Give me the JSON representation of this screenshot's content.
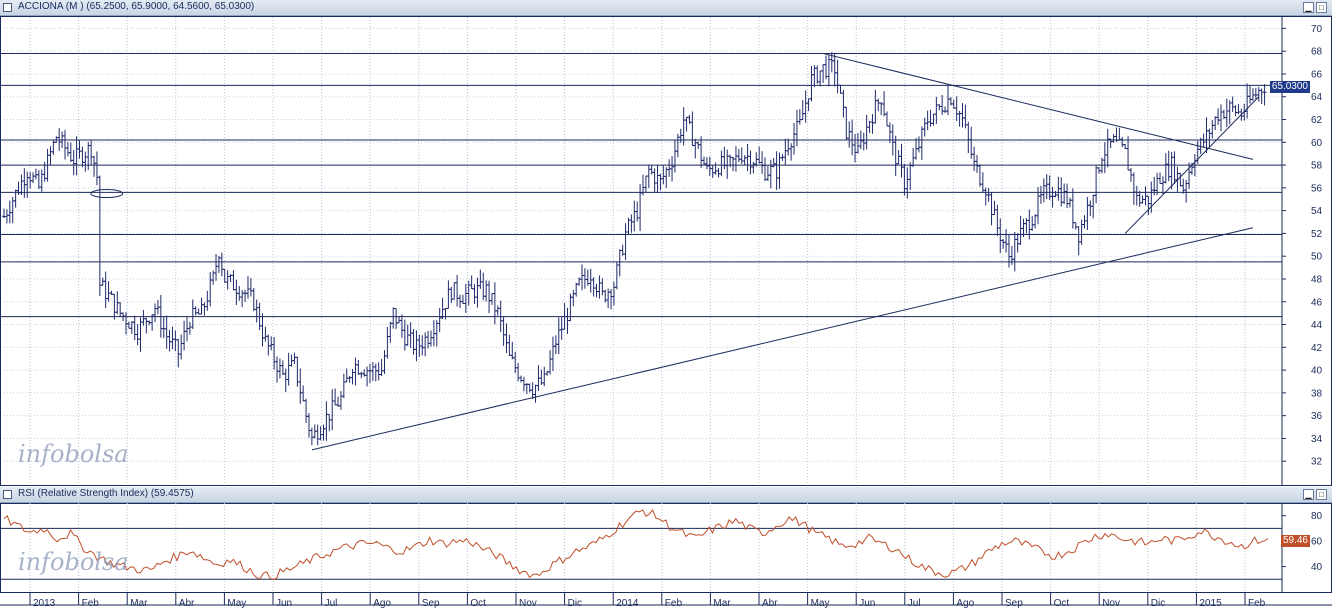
{
  "main_panel": {
    "title": "ACCIONA (M ) (65.2500, 65.9000, 64.5600, 65.0300)",
    "last_price_label": "65.0300",
    "last_price": 65.03,
    "watermark": "infobolsa"
  },
  "rsi_panel": {
    "title": "RSI (Relative Strength Index) (59.4575)",
    "last_value_label": "59.46",
    "last_value": 59.46,
    "watermark": "infobolsa"
  },
  "controls": {
    "minimize_icon": "minimize-icon",
    "maximize_icon": "maximize-icon"
  },
  "colors": {
    "bars": "#1f2a6b",
    "price_label_bg": "#1f3a8a",
    "rsi_line": "#c0502a",
    "rsi_label_bg": "#c0502a",
    "grid": "#1a2a5a",
    "panel_title_bg": "#d4deea"
  },
  "chart_data": [
    {
      "type": "ohlc",
      "ylim": [
        30,
        71
      ],
      "yticks": [
        32,
        34,
        36,
        38,
        40,
        42,
        44,
        46,
        48,
        50,
        52,
        54,
        56,
        58,
        60,
        62,
        64,
        66,
        68,
        70
      ],
      "horizontal_levels": [
        67.8,
        65.0,
        60.2,
        58.0,
        55.6,
        51.9,
        49.5,
        44.7
      ],
      "x_labels": [
        "2013",
        "Feb",
        "Mar",
        "Abr",
        "May",
        "Jun",
        "Jul",
        "Ago",
        "Sep",
        "Oct",
        "Nov",
        "Dic",
        "2014",
        "Feb",
        "Mar",
        "Abr",
        "May",
        "Jun",
        "Jul",
        "Ago",
        "Sep",
        "Oct",
        "Nov",
        "Dic",
        "2015",
        "Feb"
      ],
      "close_path": [
        [
          0,
          53.5
        ],
        [
          4,
          57.5
        ],
        [
          6,
          56
        ],
        [
          9,
          60.5
        ],
        [
          12,
          58.5
        ],
        [
          15,
          59.5
        ],
        [
          16,
          57
        ],
        [
          16.5,
          47.5
        ],
        [
          18,
          46.5
        ],
        [
          20,
          45
        ],
        [
          23,
          43.5
        ],
        [
          26,
          45.5
        ],
        [
          28,
          43
        ],
        [
          30,
          41.5
        ],
        [
          32,
          44.5
        ],
        [
          34,
          45
        ],
        [
          36,
          48
        ],
        [
          37,
          50.5
        ],
        [
          38,
          48
        ],
        [
          41,
          47
        ],
        [
          43,
          46
        ],
        [
          45,
          42.5
        ],
        [
          48,
          39.5
        ],
        [
          50,
          40.5
        ],
        [
          52,
          36
        ],
        [
          53,
          34
        ],
        [
          55,
          35.5
        ],
        [
          58,
          37.5
        ],
        [
          60,
          40.5
        ],
        [
          63,
          40
        ],
        [
          65,
          40
        ],
        [
          67,
          45
        ],
        [
          69,
          43
        ],
        [
          71,
          42
        ],
        [
          73,
          43
        ],
        [
          75,
          45
        ],
        [
          77,
          47
        ],
        [
          79,
          46.5
        ],
        [
          81,
          47
        ],
        [
          83,
          47
        ],
        [
          85,
          45
        ],
        [
          87,
          41
        ],
        [
          89,
          39.5
        ],
        [
          91,
          38.5
        ],
        [
          93,
          39
        ],
        [
          95,
          42.5
        ],
        [
          97,
          45
        ],
        [
          99,
          47.5
        ],
        [
          101,
          48.5
        ],
        [
          103,
          46.5
        ],
        [
          105,
          47.5
        ],
        [
          107,
          52
        ],
        [
          109,
          54
        ],
        [
          111,
          57.5
        ],
        [
          113,
          56.5
        ],
        [
          115,
          58.5
        ],
        [
          117,
          62
        ],
        [
          119,
          60
        ],
        [
          121,
          57.5
        ],
        [
          123,
          58
        ],
        [
          125,
          58
        ],
        [
          127,
          59
        ],
        [
          129,
          58.5
        ],
        [
          131,
          57.5
        ],
        [
          133,
          57.5
        ],
        [
          135,
          60
        ],
        [
          137,
          61.5
        ],
        [
          139,
          65.5
        ],
        [
          141,
          66.5
        ],
        [
          143,
          66.5
        ],
        [
          145,
          61
        ],
        [
          147,
          59
        ],
        [
          149,
          62
        ],
        [
          151,
          64
        ],
        [
          153,
          59.5
        ],
        [
          155,
          56.5
        ],
        [
          157,
          59
        ],
        [
          159,
          62
        ],
        [
          161,
          63
        ],
        [
          163,
          64
        ],
        [
          165,
          62
        ],
        [
          167,
          58
        ],
        [
          169,
          56
        ],
        [
          171,
          52.5
        ],
        [
          173,
          50
        ],
        [
          175,
          52
        ],
        [
          177,
          53.5
        ],
        [
          179,
          55.5
        ],
        [
          181,
          56
        ],
        [
          183,
          55
        ],
        [
          185,
          52
        ],
        [
          187,
          55
        ],
        [
          189,
          59
        ],
        [
          191,
          60
        ],
        [
          193,
          59
        ],
        [
          195,
          55
        ],
        [
          197,
          55
        ],
        [
          199,
          57
        ],
        [
          201,
          58
        ],
        [
          203,
          56
        ],
        [
          205,
          59
        ],
        [
          207,
          60.5
        ],
        [
          209,
          62.5
        ],
        [
          211,
          63
        ],
        [
          213,
          62.5
        ],
        [
          215,
          64
        ],
        [
          217,
          65
        ]
      ],
      "trendlines": [
        {
          "from": [
            53,
            33
          ],
          "to": [
            215,
            52.5
          ]
        },
        {
          "from": [
            141,
            67.8
          ],
          "to": [
            215,
            58.5
          ]
        },
        {
          "from": [
            193,
            52
          ],
          "to": [
            216,
            64
          ]
        }
      ],
      "annotation": {
        "type": "ellipse",
        "x": 17,
        "y": 55.5
      }
    },
    {
      "type": "line",
      "name": "",
      "ylim": [
        20,
        90
      ],
      "yticks": [
        40,
        60,
        80
      ],
      "reference_levels": [
        70,
        30
      ],
      "values": [
        78,
        72,
        67,
        70,
        62,
        66,
        55,
        48,
        43,
        40,
        38,
        37,
        44,
        48,
        53,
        47,
        42,
        45,
        40,
        34,
        32,
        36,
        40,
        45,
        49,
        53,
        56,
        58,
        58,
        54,
        52,
        56,
        61,
        58,
        60,
        60,
        54,
        49,
        42,
        36,
        33,
        40,
        46,
        52,
        56,
        62,
        70,
        78,
        84,
        80,
        72,
        66,
        62,
        68,
        72,
        76,
        70,
        66,
        72,
        78,
        74,
        66,
        62,
        56,
        58,
        62,
        58,
        54,
        46,
        40,
        36,
        34,
        38,
        44,
        52,
        58,
        60,
        56,
        52,
        48,
        52,
        58,
        64,
        66,
        62,
        60,
        58,
        62,
        60,
        64,
        68,
        64,
        60,
        56,
        60,
        62
      ]
    }
  ]
}
